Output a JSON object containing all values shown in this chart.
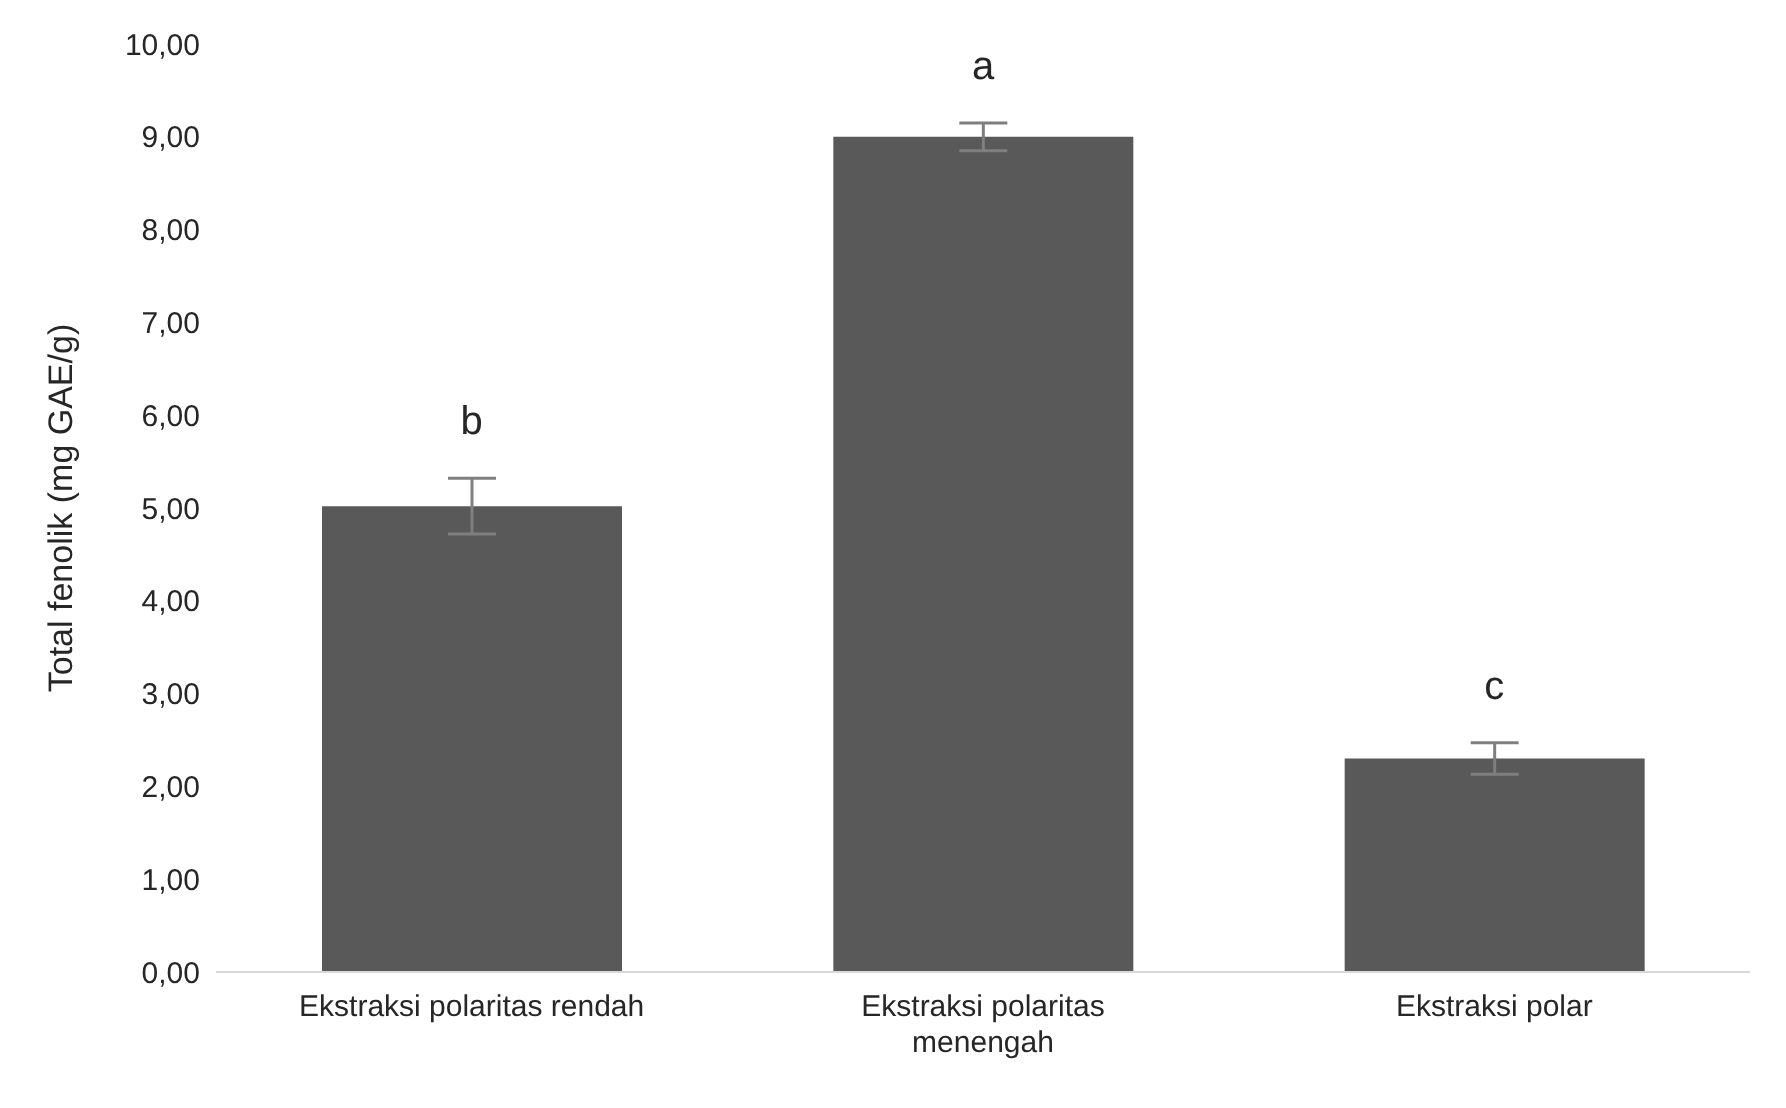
{
  "chart_data": {
    "type": "bar",
    "ylabel": "Total fenolik (mg GAE/g)",
    "categories": [
      "Ekstraksi polaritas rendah",
      "Ekstraksi polaritas menengah",
      "Ekstraksi polar"
    ],
    "values": [
      5.02,
      9.0,
      2.3
    ],
    "errors": [
      0.3,
      0.15,
      0.17
    ],
    "color": "#595959",
    "ylim": [
      0,
      10
    ],
    "yticks": [
      {
        "value": 0,
        "label": "0,00"
      },
      {
        "value": 1,
        "label": "1,00"
      },
      {
        "value": 2,
        "label": "2,00"
      },
      {
        "value": 3,
        "label": "3,00"
      },
      {
        "value": 4,
        "label": "4,00"
      },
      {
        "value": 5,
        "label": "5,00"
      },
      {
        "value": 6,
        "label": "6,00"
      },
      {
        "value": 7,
        "label": "7,00"
      },
      {
        "value": 8,
        "label": "8,00"
      },
      {
        "value": 9,
        "label": "9,00"
      },
      {
        "value": 10,
        "label": "10,00"
      }
    ],
    "annotations": [
      "b",
      "a",
      "c"
    ]
  }
}
